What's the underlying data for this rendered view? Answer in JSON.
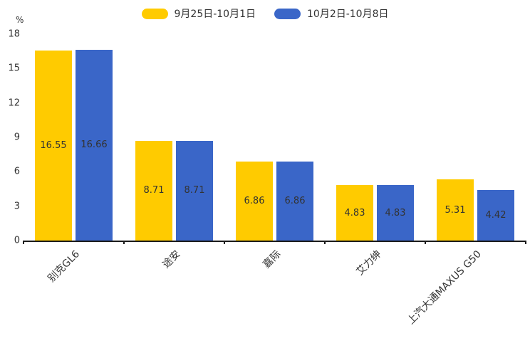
{
  "chart_data": {
    "type": "bar",
    "title": "",
    "unit_label": "%",
    "categories": [
      "别克GL6",
      "途安",
      "嘉际",
      "艾力绅",
      "上汽大通MAXUS G50"
    ],
    "series": [
      {
        "name": "9月25日-10月1日",
        "color": "#FFCB00",
        "values": [
          16.55,
          8.71,
          6.86,
          4.83,
          5.31
        ]
      },
      {
        "name": "10月2日-10月8日",
        "color": "#3A66C8",
        "values": [
          16.66,
          8.71,
          6.86,
          4.83,
          4.42
        ]
      }
    ],
    "ylim": [
      0,
      18
    ],
    "yticks": [
      0,
      3,
      6,
      9,
      12,
      15,
      18
    ],
    "legend_position": "top-center",
    "grid": false,
    "value_label_position": "inside-center",
    "xlabel": "",
    "ylabel": "%",
    "text_color": "#333333",
    "axis_color": "#1a1a1a",
    "background_color": "#ffffff"
  }
}
